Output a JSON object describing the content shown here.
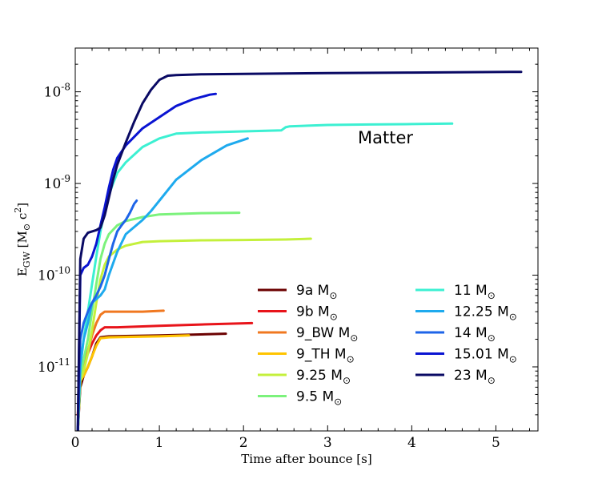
{
  "chart_data": {
    "type": "line",
    "title": "",
    "xlabel": "Time after bounce [s]",
    "ylabel": "E_GW [M_sun c^2]",
    "ylabel_parts": {
      "main": "E",
      "sub": "GW",
      "unit_open": "[M",
      "sun": "⊙",
      "unit_c": " c",
      "sup": "2",
      "unit_close": "]"
    },
    "annotation": "Matter",
    "xlim": [
      0,
      5.5
    ],
    "ylim": [
      2e-12,
      3e-08
    ],
    "yscale": "log",
    "x_ticks": [
      0,
      1,
      2,
      3,
      4,
      5
    ],
    "x_tick_labels": [
      "0",
      "1",
      "2",
      "3",
      "4",
      "5"
    ],
    "y_ticks": [
      1e-11,
      1e-10,
      1e-09,
      1e-08
    ],
    "y_tick_labels": [
      {
        "base": "10",
        "exp": "-11"
      },
      {
        "base": "10",
        "exp": "-10"
      },
      {
        "base": "10",
        "exp": "-9"
      },
      {
        "base": "10",
        "exp": "-8"
      }
    ],
    "legend_suffix": "M",
    "legend_sun": "⊙",
    "series": [
      {
        "name": "9a",
        "color": "#6b0000",
        "x": [
          0.03,
          0.06,
          0.1,
          0.15,
          0.2,
          0.25,
          0.3,
          0.4,
          0.6,
          1.0,
          1.4,
          1.79
        ],
        "y": [
          2e-12,
          6e-12,
          8e-12,
          1e-11,
          1.3e-11,
          1.8e-11,
          2.1e-11,
          2.15e-11,
          2.17e-11,
          2.2e-11,
          2.25e-11,
          2.3e-11
        ]
      },
      {
        "name": "9b",
        "color": "#e8141a",
        "x": [
          0.03,
          0.06,
          0.1,
          0.15,
          0.2,
          0.25,
          0.3,
          0.35,
          0.5,
          1.0,
          1.5,
          2.1
        ],
        "y": [
          3e-12,
          1e-11,
          1.1e-11,
          1.4e-11,
          1.8e-11,
          2.2e-11,
          2.5e-11,
          2.7e-11,
          2.7e-11,
          2.8e-11,
          2.9e-11,
          3e-11
        ]
      },
      {
        "name": "9_BW",
        "color": "#f07820",
        "x": [
          0.03,
          0.06,
          0.1,
          0.15,
          0.2,
          0.25,
          0.3,
          0.35,
          0.5,
          0.8,
          1.05
        ],
        "y": [
          2e-12,
          8e-12,
          1.1e-11,
          1.5e-11,
          2.2e-11,
          3e-11,
          3.7e-11,
          4e-11,
          4e-11,
          4e-11,
          4.1e-11
        ]
      },
      {
        "name": "9_TH",
        "color": "#ffc400",
        "x": [
          0.03,
          0.06,
          0.1,
          0.15,
          0.2,
          0.25,
          0.3,
          0.4,
          0.6,
          1.0,
          1.35
        ],
        "y": [
          2e-12,
          7e-12,
          8e-12,
          1e-11,
          1.3e-11,
          1.7e-11,
          2.05e-11,
          2.1e-11,
          2.12e-11,
          2.15e-11,
          2.2e-11
        ]
      },
      {
        "name": "9.25",
        "color": "#c4f03c",
        "x": [
          0.03,
          0.06,
          0.1,
          0.15,
          0.2,
          0.25,
          0.3,
          0.35,
          0.4,
          0.5,
          0.6,
          0.8,
          1.0,
          1.5,
          2.0,
          2.5,
          2.8
        ],
        "y": [
          2e-12,
          7e-12,
          9e-12,
          1.4e-11,
          2.5e-11,
          5e-11,
          9e-11,
          1.3e-10,
          1.6e-10,
          1.9e-10,
          2.1e-10,
          2.3e-10,
          2.35e-10,
          2.4e-10,
          2.42e-10,
          2.45e-10,
          2.5e-10
        ]
      },
      {
        "name": "9.5",
        "color": "#7cf27c",
        "x": [
          0.03,
          0.06,
          0.1,
          0.15,
          0.2,
          0.25,
          0.3,
          0.35,
          0.4,
          0.5,
          0.6,
          0.8,
          1.0,
          1.5,
          1.95
        ],
        "y": [
          2e-12,
          8e-12,
          1.2e-11,
          2e-11,
          4e-11,
          8e-11,
          1.5e-10,
          2.2e-10,
          2.8e-10,
          3.5e-10,
          3.9e-10,
          4.3e-10,
          4.6e-10,
          4.75e-10,
          4.8e-10
        ]
      },
      {
        "name": "11",
        "color": "#3cf0d2",
        "x": [
          0.03,
          0.06,
          0.1,
          0.15,
          0.2,
          0.25,
          0.3,
          0.35,
          0.4,
          0.45,
          0.5,
          0.6,
          0.8,
          1.0,
          1.2,
          1.5,
          2.0,
          2.45,
          2.5,
          2.55,
          3.0,
          3.5,
          4.0,
          4.48
        ],
        "y": [
          2e-12,
          1e-11,
          2e-11,
          4e-11,
          8e-11,
          1.6e-10,
          3e-10,
          5e-10,
          7.5e-10,
          1e-09,
          1.3e-09,
          1.7e-09,
          2.5e-09,
          3.1e-09,
          3.5e-09,
          3.6e-09,
          3.7e-09,
          3.8e-09,
          4.1e-09,
          4.2e-09,
          4.35e-09,
          4.4e-09,
          4.45e-09,
          4.5e-09
        ]
      },
      {
        "name": "12.25",
        "color": "#1eaaee",
        "x": [
          0.03,
          0.06,
          0.1,
          0.15,
          0.2,
          0.3,
          0.35,
          0.4,
          0.5,
          0.6,
          0.8,
          0.9,
          1.0,
          1.2,
          1.5,
          1.8,
          2.05
        ],
        "y": [
          2e-12,
          1e-11,
          2e-11,
          3e-11,
          5e-11,
          6e-11,
          7e-11,
          1e-10,
          1.8e-10,
          2.8e-10,
          4e-10,
          5e-10,
          6.5e-10,
          1.1e-09,
          1.8e-09,
          2.6e-09,
          3.1e-09
        ]
      },
      {
        "name": "14",
        "color": "#1e64e8",
        "x": [
          0.03,
          0.06,
          0.1,
          0.15,
          0.2,
          0.25,
          0.3,
          0.35,
          0.4,
          0.45,
          0.5,
          0.55,
          0.6,
          0.65,
          0.7,
          0.73
        ],
        "y": [
          2e-12,
          2e-11,
          3e-11,
          4e-11,
          5e-11,
          6e-11,
          7.5e-11,
          1e-10,
          1.5e-10,
          2.2e-10,
          3e-10,
          3.5e-10,
          4e-10,
          4.8e-10,
          6e-10,
          6.5e-10
        ]
      },
      {
        "name": "15.01",
        "color": "#0a14d2",
        "x": [
          0.03,
          0.06,
          0.1,
          0.15,
          0.2,
          0.25,
          0.3,
          0.35,
          0.4,
          0.45,
          0.5,
          0.6,
          0.8,
          1.0,
          1.2,
          1.4,
          1.6,
          1.67
        ],
        "y": [
          2e-12,
          1e-10,
          1.2e-10,
          1.3e-10,
          1.6e-10,
          2.2e-10,
          3.5e-10,
          5.5e-10,
          9e-10,
          1.4e-09,
          1.9e-09,
          2.6e-09,
          4e-09,
          5.3e-09,
          7e-09,
          8.3e-09,
          9.3e-09,
          9.5e-09
        ]
      },
      {
        "name": "23",
        "color": "#0a0a64",
        "x": [
          0.03,
          0.06,
          0.1,
          0.15,
          0.2,
          0.25,
          0.3,
          0.35,
          0.4,
          0.45,
          0.5,
          0.6,
          0.7,
          0.8,
          0.9,
          1.0,
          1.1,
          1.2,
          1.5,
          2.0,
          3.0,
          4.0,
          5.3
        ],
        "y": [
          2e-12,
          1.5e-10,
          2.5e-10,
          2.9e-10,
          3e-10,
          3.1e-10,
          3.3e-10,
          4.5e-10,
          7e-10,
          1.1e-09,
          1.6e-09,
          2.8e-09,
          4.7e-09,
          7.5e-09,
          1.05e-08,
          1.35e-08,
          1.5e-08,
          1.52e-08,
          1.55e-08,
          1.57e-08,
          1.6e-08,
          1.62e-08,
          1.65e-08
        ]
      }
    ],
    "legend_columns": [
      [
        "9a",
        "9b",
        "9_BW",
        "9_TH",
        "9.25",
        "9.5"
      ],
      [
        "11",
        "12.25",
        "14",
        "15.01",
        "23"
      ]
    ]
  }
}
